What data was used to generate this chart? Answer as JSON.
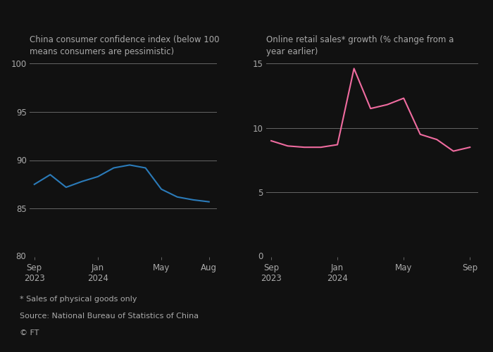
{
  "left_title": "China consumer confidence index (below 100\nmeans consumers are pessimistic)",
  "right_title": "Online retail sales* growth (% change from a\nyear earlier)",
  "footnote1": "* Sales of physical goods only",
  "footnote2": "Source: National Bureau of Statistics of China",
  "footnote3": "© FT",
  "left_ylim": [
    80,
    100
  ],
  "left_yticks": [
    85,
    90,
    95,
    100
  ],
  "left_ytick_labels": [
    "85",
    "90",
    "95",
    "100"
  ],
  "left_ymin_label": "80",
  "right_ylim": [
    0,
    15
  ],
  "right_yticks": [
    5,
    10,
    15
  ],
  "right_ytick_labels": [
    "5",
    "10",
    "15"
  ],
  "right_ymin_label": "0",
  "left_color": "#2b7bb9",
  "right_color": "#f06ca0",
  "background_color": "#111111",
  "text_color": "#aaaaaa",
  "line_color": "#666666",
  "left_x": [
    0,
    1,
    2,
    3,
    4,
    5,
    6,
    7,
    8,
    9,
    10,
    11
  ],
  "left_y": [
    87.5,
    88.5,
    87.2,
    87.8,
    88.3,
    89.2,
    89.5,
    89.2,
    87.0,
    86.2,
    85.9,
    85.7
  ],
  "right_x": [
    0,
    1,
    2,
    3,
    4,
    5,
    6,
    7,
    8,
    9,
    10,
    11,
    12
  ],
  "right_y": [
    9.0,
    8.6,
    8.5,
    8.5,
    8.7,
    14.6,
    11.5,
    11.8,
    12.3,
    9.5,
    9.1,
    8.2,
    8.5
  ],
  "left_xtick_positions": [
    0,
    4,
    8,
    11
  ],
  "left_xtick_labels": [
    "Sep\n2023",
    "Jan\n2024",
    "May",
    "Aug"
  ],
  "right_xtick_positions": [
    0,
    4,
    8,
    12
  ],
  "right_xtick_labels": [
    "Sep\n2023",
    "Jan\n2024",
    "May",
    "Sep"
  ]
}
